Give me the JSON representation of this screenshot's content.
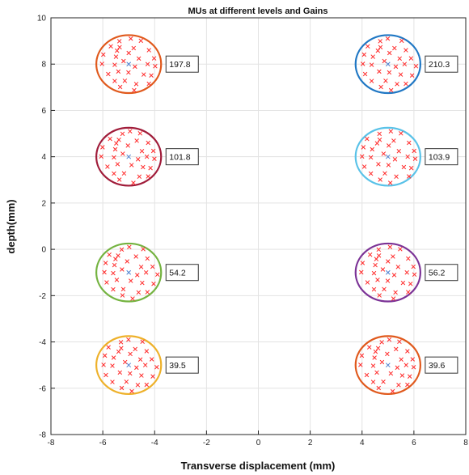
{
  "chart_data": {
    "type": "scatter",
    "title": "MUs at different levels and Gains",
    "xlabel": "Transverse displacement (mm)",
    "ylabel": "depth(mm)",
    "xlim": [
      -8,
      8
    ],
    "ylim": [
      -8,
      10
    ],
    "xticks": [
      -8,
      -6,
      -4,
      -2,
      0,
      2,
      4,
      6,
      8
    ],
    "yticks": [
      -8,
      -6,
      -4,
      -2,
      0,
      2,
      4,
      6,
      8,
      10
    ],
    "grid": true,
    "marker_color": "#ff2a2a",
    "groups": [
      {
        "center": [
          -5,
          8
        ],
        "radius": 1.25,
        "ellipse_color": "#e0591c",
        "annotation": "197.8"
      },
      {
        "center": [
          5,
          8
        ],
        "radius": 1.25,
        "ellipse_color": "#1f77c4",
        "annotation": "210.3"
      },
      {
        "center": [
          -5,
          4
        ],
        "radius": 1.25,
        "ellipse_color": "#a01c3a",
        "annotation": "101.8"
      },
      {
        "center": [
          5,
          4
        ],
        "radius": 1.25,
        "ellipse_color": "#59c2e8",
        "annotation": "103.9"
      },
      {
        "center": [
          -5,
          -1
        ],
        "radius": 1.25,
        "ellipse_color": "#74b340",
        "annotation": "54.2"
      },
      {
        "center": [
          5,
          -1
        ],
        "radius": 1.25,
        "ellipse_color": "#7b3296",
        "annotation": "56.2"
      },
      {
        "center": [
          -5,
          -5
        ],
        "radius": 1.25,
        "ellipse_color": "#eeb12a",
        "annotation": "39.5"
      },
      {
        "center": [
          5,
          -5
        ],
        "radius": 1.25,
        "ellipse_color": "#e0591c",
        "annotation": "39.6"
      }
    ],
    "offsets": [
      [
        -0.3,
        1.05
      ],
      [
        0.05,
        1.1
      ],
      [
        0.5,
        0.95
      ],
      [
        -0.75,
        0.8
      ],
      [
        -0.35,
        0.7
      ],
      [
        0.25,
        0.75
      ],
      [
        0.75,
        0.6
      ],
      [
        -0.95,
        0.35
      ],
      [
        -0.55,
        0.35
      ],
      [
        0.0,
        0.45
      ],
      [
        0.45,
        0.3
      ],
      [
        0.95,
        0.25
      ],
      [
        -1.0,
        -0.05
      ],
      [
        -0.6,
        0.0
      ],
      [
        -0.2,
        0.1
      ],
      [
        0.3,
        -0.05
      ],
      [
        0.7,
        0.0
      ],
      [
        1.05,
        -0.15
      ],
      [
        -0.85,
        -0.4
      ],
      [
        -0.4,
        -0.35
      ],
      [
        0.05,
        -0.3
      ],
      [
        0.55,
        -0.45
      ],
      [
        0.9,
        -0.55
      ],
      [
        -0.6,
        -0.7
      ],
      [
        -0.15,
        -0.75
      ],
      [
        0.35,
        -0.8
      ],
      [
        0.75,
        -0.85
      ],
      [
        -0.3,
        -1.05
      ],
      [
        0.15,
        -1.1
      ],
      [
        -0.45,
        0.55
      ]
    ]
  }
}
